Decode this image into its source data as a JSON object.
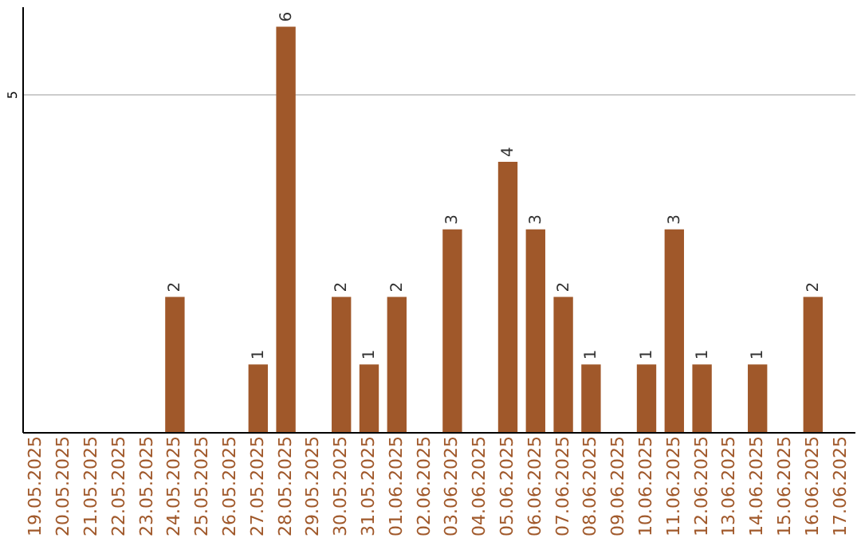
{
  "chart_data": {
    "type": "bar",
    "categories": [
      "19.05.2025",
      "20.05.2025",
      "21.05.2025",
      "22.05.2025",
      "23.05.2025",
      "24.05.2025",
      "25.05.2025",
      "26.05.2025",
      "27.05.2025",
      "28.05.2025",
      "29.05.2025",
      "30.05.2025",
      "31.05.2025",
      "01.06.2025",
      "02.06.2025",
      "03.06.2025",
      "04.06.2025",
      "05.06.2025",
      "06.06.2025",
      "07.06.2025",
      "08.06.2025",
      "09.06.2025",
      "10.06.2025",
      "11.06.2025",
      "12.06.2025",
      "13.06.2025",
      "14.06.2025",
      "15.06.2025",
      "16.06.2025",
      "17.06.2025"
    ],
    "values": [
      null,
      null,
      null,
      null,
      null,
      2,
      null,
      null,
      1,
      6,
      null,
      2,
      1,
      2,
      null,
      3,
      null,
      4,
      3,
      2,
      1,
      null,
      1,
      3,
      1,
      null,
      1,
      null,
      2,
      null
    ],
    "color": "#a0582a",
    "ylim": [
      0,
      6.3
    ],
    "yticks": [
      5
    ],
    "grid": "y",
    "data_labels": true
  }
}
